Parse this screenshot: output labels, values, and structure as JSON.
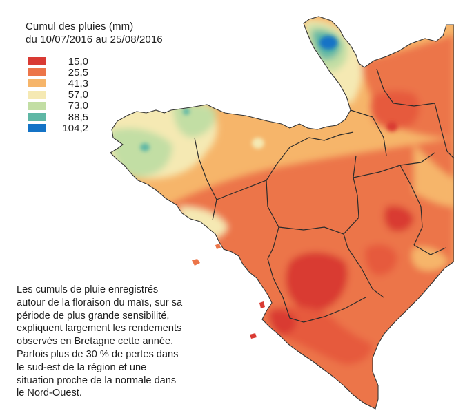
{
  "map": {
    "title_line1": "Cumul des pluies (mm)",
    "title_line2": "du 10/07/2016 au 25/08/2016",
    "legend": [
      {
        "label": "15,0",
        "color": "#d93a33"
      },
      {
        "label": "25,5",
        "color": "#ec7549"
      },
      {
        "label": "41,3",
        "color": "#f6b56a"
      },
      {
        "label": "57,0",
        "color": "#f5e9b3"
      },
      {
        "label": "73,0",
        "color": "#c2dea4"
      },
      {
        "label": "88,5",
        "color": "#5fb7a5"
      },
      {
        "label": "104,2",
        "color": "#1473c6"
      }
    ],
    "caption_lines": [
      "Les cumuls de pluie enregistrés",
      "autour de la floraison du maïs, sur sa",
      "période de plus grande sensibilité,",
      "expliquent largement les rendements",
      "observés en Bretagne cette année.",
      "Parfois plus de 30 % de pertes dans",
      "le sud-est de la région et une",
      "situation proche de la normale dans",
      "le Nord-Ouest."
    ]
  }
}
